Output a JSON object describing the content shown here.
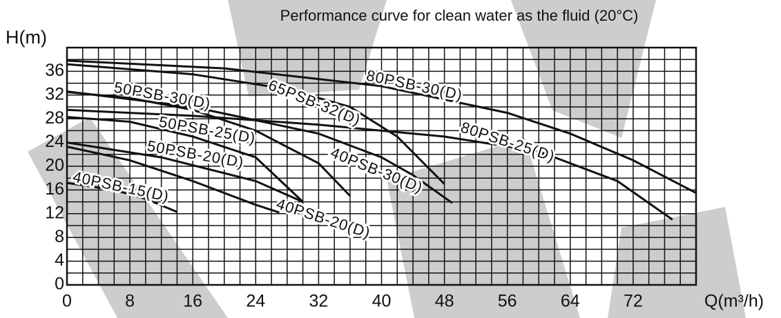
{
  "chart_data": {
    "type": "line",
    "title": "Performance curve for clean water as the fluid (20°C)",
    "y_label": "H(m)",
    "x_label": "Q(m³/h)",
    "xlim": [
      0,
      80
    ],
    "ylim": [
      0,
      40
    ],
    "xticks": [
      0,
      8,
      16,
      24,
      32,
      40,
      48,
      56,
      64,
      72
    ],
    "yticks": [
      0,
      4,
      8,
      12,
      16,
      20,
      24,
      28,
      32,
      36
    ],
    "xminorticks": [
      2,
      4,
      6,
      10,
      12,
      14,
      18,
      20,
      22,
      26,
      28,
      30,
      34,
      36,
      38,
      42,
      44,
      46,
      50,
      52,
      54,
      58,
      60,
      62,
      66,
      68,
      70,
      74,
      76,
      78,
      80
    ],
    "yminorticks": [
      2,
      6,
      10,
      14,
      18,
      22,
      26,
      30,
      34,
      38,
      40
    ],
    "grid": true,
    "color": "#111",
    "series": [
      {
        "name": "80PSB-30(D)",
        "x": [
          0,
          20,
          40,
          56,
          64,
          72,
          80
        ],
        "values": [
          37.8,
          36.5,
          33.5,
          29,
          25.5,
          21,
          15.5
        ]
      },
      {
        "name": "65PSB-32(D)",
        "x": [
          0,
          16,
          28,
          36,
          42,
          48
        ],
        "values": [
          37.2,
          35.5,
          33,
          30,
          25,
          17
        ]
      },
      {
        "name": "50PSB-30(D)",
        "x": [
          0,
          8,
          16,
          24,
          32,
          36
        ],
        "values": [
          32.5,
          31.5,
          29.5,
          26,
          20.5,
          15
        ]
      },
      {
        "name": "40PSB-30(D)",
        "x": [
          0,
          16,
          32,
          40,
          44,
          49
        ],
        "values": [
          32.6,
          30,
          25.5,
          21.5,
          18.5,
          13.8
        ]
      },
      {
        "name": "80PSB-25(D)",
        "x": [
          0,
          16,
          32,
          48,
          60,
          70,
          77
        ],
        "values": [
          29.5,
          28.5,
          27,
          25,
          22.5,
          17.5,
          11
        ]
      },
      {
        "name": "50PSB-25(D)",
        "x": [
          0,
          8,
          16,
          24,
          30
        ],
        "values": [
          28.3,
          27.5,
          25,
          21.5,
          14
        ]
      },
      {
        "name": "50PSB-20(D)",
        "x": [
          0,
          12,
          24,
          30
        ],
        "values": [
          24,
          21.5,
          17.5,
          14
        ]
      },
      {
        "name": "40PSB-20(D)",
        "x": [
          0,
          8,
          16,
          24,
          27
        ],
        "values": [
          23.3,
          21,
          17.5,
          13.5,
          12.2
        ]
      },
      {
        "name": "40PSB-15(D)",
        "x": [
          0,
          6,
          10,
          14
        ],
        "values": [
          17.2,
          16,
          14.5,
          12.3
        ]
      }
    ]
  }
}
